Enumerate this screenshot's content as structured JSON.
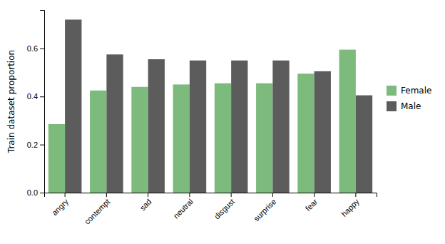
{
  "chart_data": {
    "type": "bar",
    "categories": [
      "angry",
      "contempt",
      "sad",
      "neutral",
      "disgust",
      "surprise",
      "fear",
      "happy"
    ],
    "series": [
      {
        "name": "Female",
        "color": "#7dbb7d",
        "values": [
          0.285,
          0.425,
          0.44,
          0.45,
          0.455,
          0.455,
          0.495,
          0.595
        ]
      },
      {
        "name": "Male",
        "color": "#5c5c5c",
        "values": [
          0.72,
          0.575,
          0.555,
          0.55,
          0.55,
          0.55,
          0.505,
          0.405
        ]
      }
    ],
    "ylabel": "Train dataset proportion",
    "ylim": [
      0.0,
      0.76
    ],
    "yticks": [
      {
        "value": 0.0,
        "label": "0.0"
      },
      0.2,
      0.4,
      0.6
    ],
    "legend": "right"
  }
}
